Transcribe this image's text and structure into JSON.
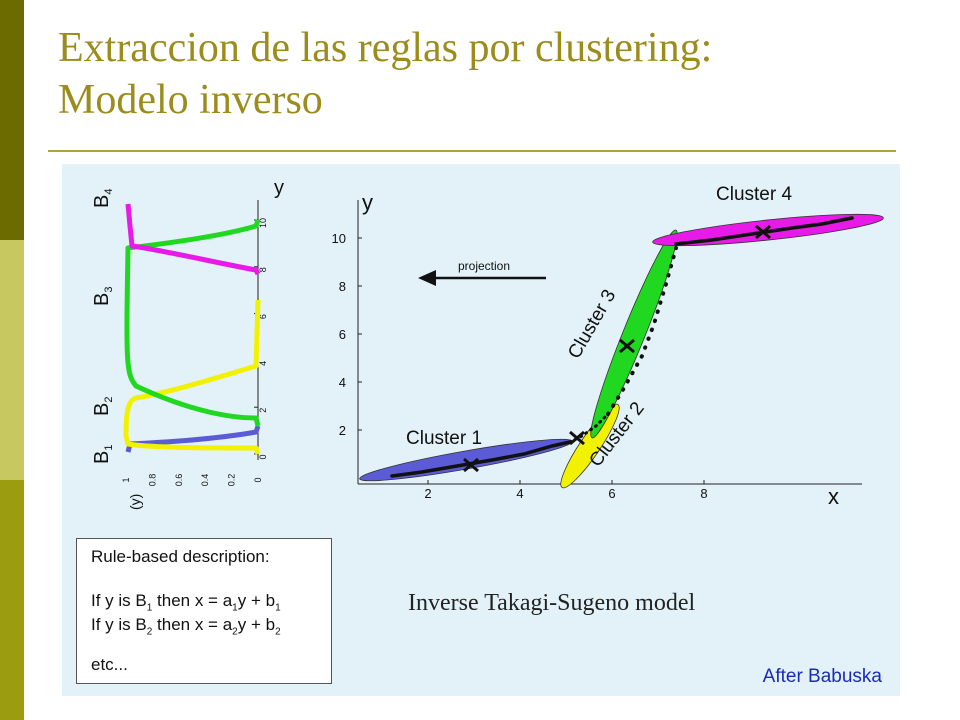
{
  "slide": {
    "title_line1": "Extraccion de las reglas por clustering:",
    "title_line2": "Modelo inverso"
  },
  "colors": {
    "olive_dark": "#6b6b00",
    "olive_light": "#c8c860",
    "olive_mid": "#9c9c10",
    "title": "#9c8c1c",
    "panel": "#e2f2f8",
    "cluster1": "#5b5bd6",
    "cluster2": "#f2f200",
    "cluster3": "#1fd81f",
    "cluster4": "#e81ae8",
    "credit": "#1a2ab8"
  },
  "membership_plot": {
    "axis_label_y": "y",
    "axis_label_mu": "(y)",
    "set_labels": [
      {
        "name": "B",
        "sub": "1"
      },
      {
        "name": "B",
        "sub": "2"
      },
      {
        "name": "B",
        "sub": "3"
      },
      {
        "name": "B",
        "sub": "4"
      }
    ],
    "y_ticks": [
      "0",
      "2",
      "4",
      "6",
      "8",
      "10"
    ],
    "mu_ticks": [
      "1",
      "0.8",
      "0.6",
      "0.4",
      "0.2",
      "0"
    ]
  },
  "main_plot": {
    "x_label": "x",
    "y_label": "y",
    "x_ticks": [
      "2",
      "4",
      "6",
      "8"
    ],
    "y_ticks": [
      "2",
      "4",
      "6",
      "8",
      "10"
    ],
    "projection_label": "projection",
    "clusters": [
      "Cluster 1",
      "Cluster 2",
      "Cluster 3",
      "Cluster 4"
    ]
  },
  "rules": {
    "title": "Rule-based description:",
    "rule1": {
      "prefix": "If y is B",
      "set": "1",
      "mid": " then x = a",
      "a": "1",
      "y": "y + b",
      "b": "1"
    },
    "rule2": {
      "prefix": "If y is B",
      "set": "2",
      "mid": " then x = a",
      "a": "2",
      "y": "y + b",
      "b": "2"
    },
    "etc": "etc..."
  },
  "caption": "Inverse Takagi-Sugeno model",
  "credit": "After Babuska"
}
